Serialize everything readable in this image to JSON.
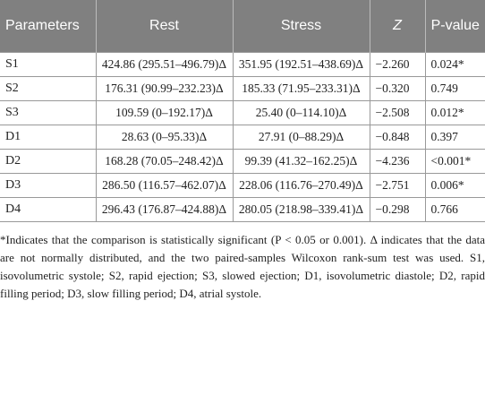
{
  "table": {
    "header": [
      "Parameters",
      "Rest",
      "Stress",
      "Z",
      "P-value"
    ],
    "rows": [
      [
        "S1",
        "424.86 (295.51–496.79)Δ",
        "351.95 (192.51–438.69)Δ",
        "−2.260",
        "0.024*"
      ],
      [
        "S2",
        "176.31 (90.99–232.23)Δ",
        "185.33 (71.95–233.31)Δ",
        "−0.320",
        "0.749"
      ],
      [
        "S3",
        "109.59 (0–192.17)Δ",
        "25.40 (0–114.10)Δ",
        "−2.508",
        "0.012*"
      ],
      [
        "D1",
        "28.63 (0–95.33)Δ",
        "27.91 (0–88.29)Δ",
        "−0.848",
        "0.397"
      ],
      [
        "D2",
        "168.28 (70.05–248.42)Δ",
        "99.39 (41.32–162.25)Δ",
        "−4.236",
        "<0.001*"
      ],
      [
        "D3",
        "286.50 (116.57–462.07)Δ",
        "228.06 (116.76–270.49)Δ",
        "−2.751",
        "0.006*"
      ],
      [
        "D4",
        "296.43 (176.87–424.88)Δ",
        "280.05 (218.98–339.41)Δ",
        "−0.298",
        "0.766"
      ]
    ]
  },
  "footnote": "*Indicates that the comparison is statistically significant (P < 0.05 or 0.001). Δ indicates that the data are not normally distributed, and the two paired-samples Wilcoxon rank-sum test was used. S1, isovolumetric systole; S2, rapid ejection; S3, slowed ejection; D1, isovolumetric diastole; D2, rapid filling period; D3, slow filling period; D4, atrial systole."
}
